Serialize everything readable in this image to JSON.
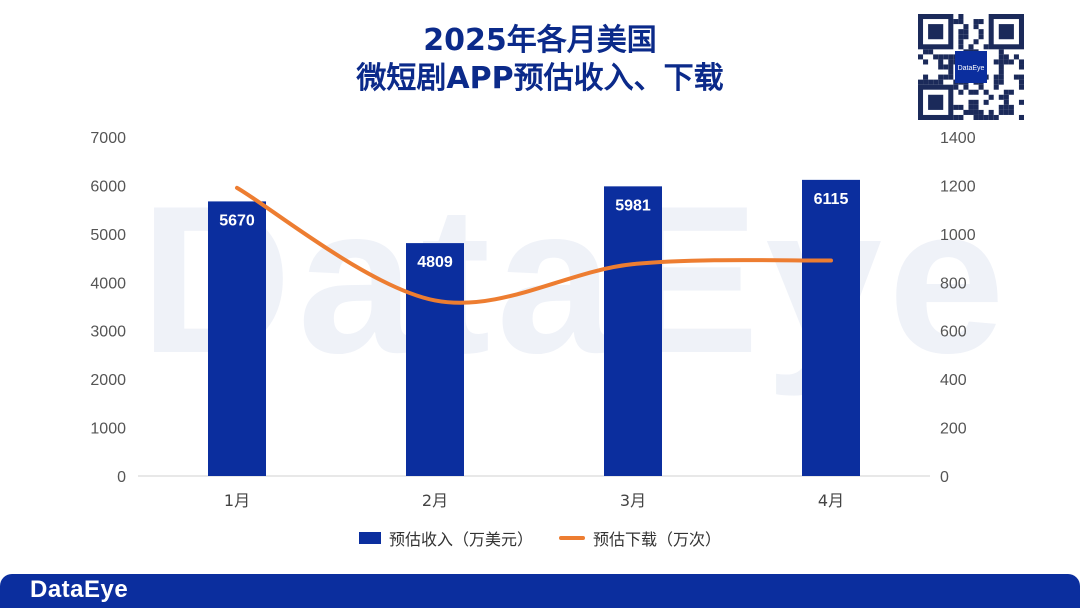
{
  "title_lines": [
    "2025年各月美国",
    "微短剧APP预估收入、下载"
  ],
  "watermark": "DataEye",
  "qr_logo_text": "DataEye",
  "footer_brand": "DataEye",
  "colors": {
    "bar": "#0b2e9e",
    "line": "#ed7d31",
    "title": "#0b2a8a",
    "footer": "#0b2e9e"
  },
  "chart_data": {
    "type": "bar",
    "categories": [
      "1月",
      "2月",
      "3月",
      "4月"
    ],
    "series": [
      {
        "name": "预估收入（万美元）",
        "type": "bar",
        "axis": "left",
        "values": [
          5670,
          4809,
          5981,
          6115
        ]
      },
      {
        "name": "预估下载（万次）",
        "type": "line",
        "axis": "right",
        "smooth": true,
        "values": [
          1190,
          725,
          875,
          890
        ]
      }
    ],
    "y_left": {
      "min": 0,
      "max": 7000,
      "ticks": [
        "0",
        "1000",
        "2000",
        "3000",
        "4000",
        "5000",
        "6000",
        "7000"
      ]
    },
    "y_right": {
      "min": 0,
      "max": 1400,
      "ticks": [
        "0",
        "200",
        "400",
        "600",
        "800",
        "1000",
        "1200",
        "1400"
      ]
    },
    "data_labels": [
      "5670",
      "4809",
      "5981",
      "6115"
    ],
    "grid": false,
    "legend": "bottom"
  }
}
